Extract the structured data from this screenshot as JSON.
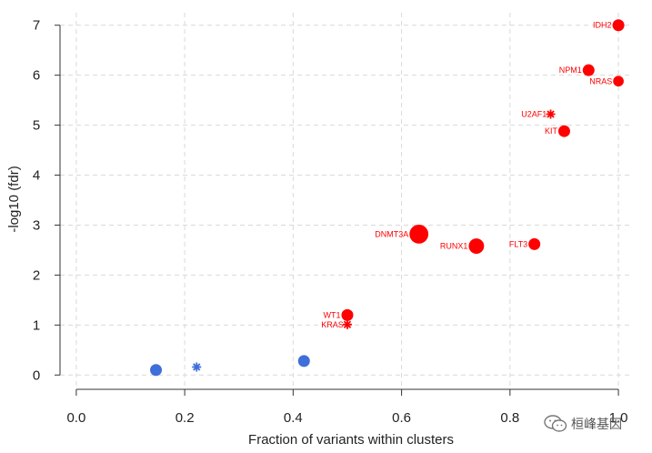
{
  "chart_data": {
    "type": "scatter",
    "title": "",
    "xlabel": "Fraction of variants within clusters",
    "ylabel": "-log10 (fdr)",
    "xlim": [
      -0.03,
      1.02
    ],
    "ylim": [
      -0.25,
      7.25
    ],
    "x_ticks": [
      0.0,
      0.2,
      0.4,
      0.6,
      0.8,
      1.0
    ],
    "x_tick_labels": [
      "0.0",
      "0.2",
      "0.4",
      "0.6",
      "0.8",
      "1.0"
    ],
    "y_ticks": [
      0,
      1,
      2,
      3,
      4,
      5,
      6,
      7
    ],
    "y_tick_labels": [
      "0",
      "1",
      "2",
      "3",
      "4",
      "5",
      "6",
      "7"
    ],
    "grid": true,
    "colors": {
      "significant": "#ff0000",
      "not_significant": "#3f6fd8",
      "grid": "#d9d9d9"
    },
    "points": [
      {
        "label": "IDH2",
        "x": 1.0,
        "y": 7.0,
        "size": 1.0,
        "shape": "circle",
        "group": "significant"
      },
      {
        "label": "NPM1",
        "x": 0.945,
        "y": 6.1,
        "size": 1.0,
        "shape": "circle",
        "group": "significant"
      },
      {
        "label": "NRAS",
        "x": 1.0,
        "y": 5.88,
        "size": 0.9,
        "shape": "circle",
        "group": "significant"
      },
      {
        "label": "U2AF1",
        "x": 0.875,
        "y": 5.22,
        "size": 0.5,
        "shape": "star",
        "group": "significant"
      },
      {
        "label": "KIT",
        "x": 0.9,
        "y": 4.88,
        "size": 1.0,
        "shape": "circle",
        "group": "significant"
      },
      {
        "label": "DNMT3A",
        "x": 0.632,
        "y": 2.82,
        "size": 1.6,
        "shape": "circle",
        "group": "significant"
      },
      {
        "label": "RUNX1",
        "x": 0.738,
        "y": 2.58,
        "size": 1.3,
        "shape": "circle",
        "group": "significant"
      },
      {
        "label": "FLT3",
        "x": 0.845,
        "y": 2.62,
        "size": 1.0,
        "shape": "circle",
        "group": "significant"
      },
      {
        "label": "WT1",
        "x": 0.5,
        "y": 1.2,
        "size": 1.0,
        "shape": "circle",
        "group": "significant"
      },
      {
        "label": "KRAS",
        "x": 0.5,
        "y": 1.01,
        "size": 0.5,
        "shape": "star",
        "group": "significant"
      },
      {
        "label": "",
        "x": 0.147,
        "y": 0.1,
        "size": 1.0,
        "shape": "circle",
        "group": "not_significant"
      },
      {
        "label": "",
        "x": 0.222,
        "y": 0.16,
        "size": 0.5,
        "shape": "star",
        "group": "not_significant"
      },
      {
        "label": "",
        "x": 0.42,
        "y": 0.28,
        "size": 1.0,
        "shape": "circle",
        "group": "not_significant"
      }
    ]
  },
  "watermark": {
    "text": "桓峰基因",
    "icon": "wechat-logo"
  }
}
